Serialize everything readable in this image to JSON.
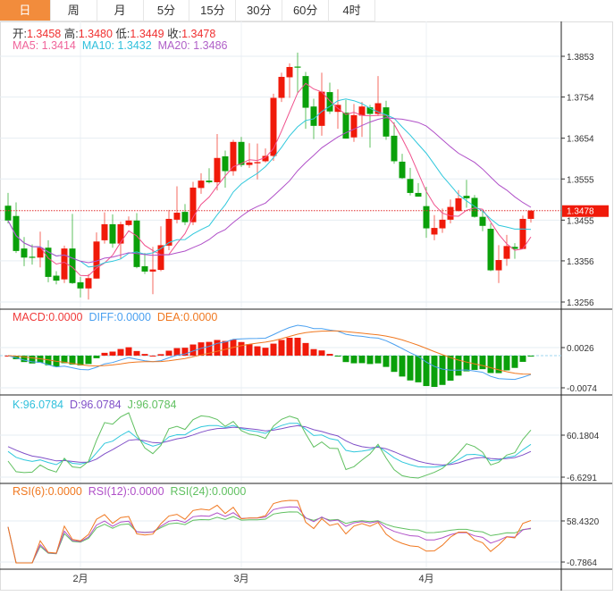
{
  "tabs": [
    {
      "label": "日",
      "active": true
    },
    {
      "label": "周"
    },
    {
      "label": "月"
    },
    {
      "label": "5分"
    },
    {
      "label": "15分"
    },
    {
      "label": "30分"
    },
    {
      "label": "60分"
    },
    {
      "label": "4时"
    }
  ],
  "ohlc_info": {
    "open_label": "开:",
    "open": "1.3458",
    "high_label": "高:",
    "high": "1.3480",
    "low_label": "低:",
    "low": "1.3449",
    "close_label": "收:",
    "close": "1.3478"
  },
  "ma_info": {
    "ma5": "MA5: 1.3414",
    "ma10": "MA10: 1.3432",
    "ma20": "MA20: 1.3486"
  },
  "macd_info": {
    "macd": "MACD:0.0000",
    "diff": "DIFF:0.0000",
    "dea": "DEA:0.0000"
  },
  "kdj_info": {
    "k": "K:96.0784",
    "d": "D:96.0784",
    "j": "J:96.0784"
  },
  "rsi_info": {
    "rsi6": "RSI(6):0.0000",
    "rsi12": "RSI(12):0.0000",
    "rsi24": "RSI(24):0.0000"
  },
  "colors": {
    "up": "#f01a0a",
    "down": "#0aa00a",
    "ma5": "#f0508c",
    "ma10": "#30c8dc",
    "ma20": "#b050c8",
    "diff": "#4aa0f0",
    "dea": "#f07820",
    "k": "#30c8dc",
    "d": "#8050c8",
    "j": "#60c060",
    "rsi6": "#f07820",
    "rsi12": "#b050c8",
    "rsi24": "#60c060",
    "tab_active": "#f28c3c"
  },
  "chart_data": {
    "type": "candlestick",
    "price_ticks": [
      "1.3853",
      "1.3754",
      "1.3654",
      "1.3555",
      "1.3455",
      "1.3356",
      "1.3256"
    ],
    "price_range": [
      1.3256,
      1.3853
    ],
    "last_price": "1.3478",
    "macd_ticks": [
      "0.0026",
      "-0.0074"
    ],
    "kdj_ticks": [
      "60.1804",
      "-6.6291"
    ],
    "rsi_ticks": [
      "58.4320",
      "-0.7864"
    ],
    "months": [
      {
        "label": "2月",
        "index": 9
      },
      {
        "label": "3月",
        "index": 29
      },
      {
        "label": "4月",
        "index": 52
      }
    ],
    "candles": [
      [
        1.349,
        1.3521,
        1.3447,
        1.3454
      ],
      [
        1.3465,
        1.3498,
        1.3375,
        1.338
      ],
      [
        1.3386,
        1.3414,
        1.3343,
        1.3364
      ],
      [
        1.3366,
        1.3396,
        1.3347,
        1.3364
      ],
      [
        1.3364,
        1.3427,
        1.334,
        1.3388
      ],
      [
        1.3388,
        1.3406,
        1.3304,
        1.3317
      ],
      [
        1.332,
        1.3331,
        1.3299,
        1.3308
      ],
      [
        1.3311,
        1.3393,
        1.3302,
        1.3386
      ],
      [
        1.3386,
        1.347,
        1.33,
        1.3302
      ],
      [
        1.3304,
        1.3317,
        1.3267,
        1.3289
      ],
      [
        1.3289,
        1.3324,
        1.3262,
        1.3314
      ],
      [
        1.3313,
        1.3425,
        1.3313,
        1.3403
      ],
      [
        1.3406,
        1.3474,
        1.3398,
        1.3445
      ],
      [
        1.3445,
        1.3469,
        1.3388,
        1.3398
      ],
      [
        1.3398,
        1.3451,
        1.3361,
        1.3445
      ],
      [
        1.3443,
        1.3464,
        1.344,
        1.3454
      ],
      [
        1.3454,
        1.3472,
        1.3338,
        1.3341
      ],
      [
        1.3343,
        1.3375,
        1.3324,
        1.333
      ],
      [
        1.333,
        1.339,
        1.3275,
        1.3335
      ],
      [
        1.3334,
        1.344,
        1.3331,
        1.3394
      ],
      [
        1.3393,
        1.348,
        1.3382,
        1.3458
      ],
      [
        1.3456,
        1.3537,
        1.3447,
        1.3473
      ],
      [
        1.3475,
        1.3494,
        1.3443,
        1.345
      ],
      [
        1.345,
        1.3548,
        1.3443,
        1.3534
      ],
      [
        1.3533,
        1.3569,
        1.3519,
        1.3551
      ],
      [
        1.3551,
        1.3581,
        1.3544,
        1.3547
      ],
      [
        1.3547,
        1.3664,
        1.3527,
        1.3606
      ],
      [
        1.361,
        1.3624,
        1.3534,
        1.3574
      ],
      [
        1.3574,
        1.365,
        1.3563,
        1.3645
      ],
      [
        1.3645,
        1.3657,
        1.3584,
        1.3589
      ],
      [
        1.3589,
        1.3642,
        1.3582,
        1.3595
      ],
      [
        1.3593,
        1.3641,
        1.3554,
        1.3596
      ],
      [
        1.3598,
        1.3629,
        1.3595,
        1.3611
      ],
      [
        1.3611,
        1.3762,
        1.3599,
        1.3752
      ],
      [
        1.3752,
        1.3813,
        1.3742,
        1.3803
      ],
      [
        1.3802,
        1.3836,
        1.3752,
        1.3827
      ],
      [
        1.3828,
        1.3862,
        1.3765,
        1.3826
      ],
      [
        1.3805,
        1.3815,
        1.3677,
        1.3728
      ],
      [
        1.3731,
        1.375,
        1.3652,
        1.3684
      ],
      [
        1.3684,
        1.3813,
        1.366,
        1.3767
      ],
      [
        1.3766,
        1.3789,
        1.3713,
        1.3719
      ],
      [
        1.3718,
        1.3773,
        1.3677,
        1.3735
      ],
      [
        1.3716,
        1.3747,
        1.3653,
        1.3653
      ],
      [
        1.3656,
        1.3737,
        1.3645,
        1.371
      ],
      [
        1.3709,
        1.3742,
        1.3657,
        1.3731
      ],
      [
        1.3729,
        1.3735,
        1.3631,
        1.3713
      ],
      [
        1.3713,
        1.3805,
        1.3708,
        1.3739
      ],
      [
        1.3729,
        1.3745,
        1.365,
        1.3658
      ],
      [
        1.366,
        1.3693,
        1.3592,
        1.3598
      ],
      [
        1.3597,
        1.3616,
        1.3555,
        1.3557
      ],
      [
        1.3555,
        1.3582,
        1.3515,
        1.3521
      ],
      [
        1.3521,
        1.3545,
        1.3512,
        1.3512
      ],
      [
        1.3489,
        1.3536,
        1.3412,
        1.3435
      ],
      [
        1.342,
        1.3467,
        1.3406,
        1.3436
      ],
      [
        1.3435,
        1.3483,
        1.3424,
        1.3456
      ],
      [
        1.3456,
        1.3505,
        1.3447,
        1.3487
      ],
      [
        1.3477,
        1.3528,
        1.3476,
        1.3508
      ],
      [
        1.3514,
        1.3553,
        1.3485,
        1.3508
      ],
      [
        1.3509,
        1.3516,
        1.3461,
        1.3463
      ],
      [
        1.3463,
        1.3477,
        1.3428,
        1.3441
      ],
      [
        1.3434,
        1.3447,
        1.3331,
        1.3333
      ],
      [
        1.3333,
        1.3394,
        1.3302,
        1.3358
      ],
      [
        1.3361,
        1.3419,
        1.3344,
        1.3392
      ],
      [
        1.339,
        1.3399,
        1.3361,
        1.3385
      ],
      [
        1.3385,
        1.3466,
        1.3385,
        1.3458
      ],
      [
        1.3458,
        1.348,
        1.3449,
        1.3478
      ]
    ]
  }
}
